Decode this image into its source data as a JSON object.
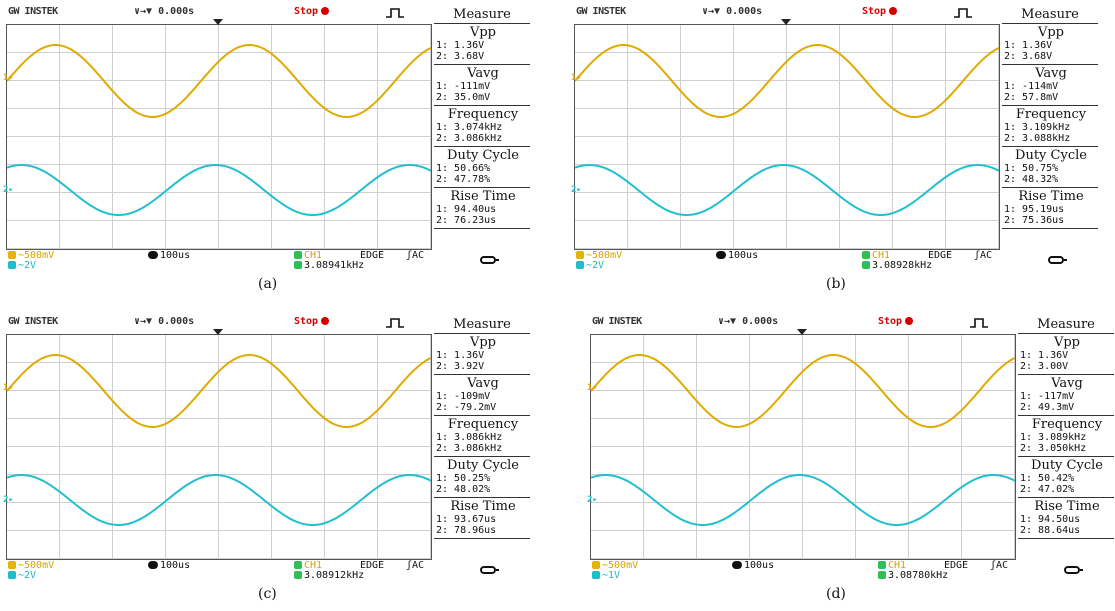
{
  "panels": [
    {
      "brand": "GW INSTEK",
      "time_position": "∨→▼ 0.000s",
      "run_state": "Stop",
      "measure_title": "Measure",
      "measurements": [
        {
          "label": "Vpp",
          "ch1": "1: 1.36V",
          "ch2": "2: 3.68V"
        },
        {
          "label": "Vavg",
          "ch1": "1: -111mV",
          "ch2": "2: 35.0mV"
        },
        {
          "label": "Frequency",
          "ch1": "1: 3.074kHz",
          "ch2": "2: 3.086kHz"
        },
        {
          "label": "Duty Cycle",
          "ch1": "1: 50.66%",
          "ch2": "2: 47.78%"
        },
        {
          "label": "Rise Time",
          "ch1": "1: 94.40us",
          "ch2": "2: 76.23us"
        }
      ],
      "ch1_scale": "∼500mV",
      "ch2_scale": "∼2V",
      "timebase": "100us",
      "trigger_source": "CH1",
      "trigger_type": "EDGE",
      "trigger_coupling": "ʃAC",
      "trigger_freq": "3.08941kHz",
      "caption": "(a)"
    },
    {
      "brand": "GW INSTEK",
      "time_position": "∨→▼ 0.000s",
      "run_state": "Stop",
      "measure_title": "Measure",
      "measurements": [
        {
          "label": "Vpp",
          "ch1": "1: 1.36V",
          "ch2": "2: 3.68V"
        },
        {
          "label": "Vavg",
          "ch1": "1: -114mV",
          "ch2": "2: 57.8mV"
        },
        {
          "label": "Frequency",
          "ch1": "1: 3.109kHz",
          "ch2": "2: 3.088kHz"
        },
        {
          "label": "Duty Cycle",
          "ch1": "1: 50.75%",
          "ch2": "2: 48.32%"
        },
        {
          "label": "Rise Time",
          "ch1": "1: 95.19us",
          "ch2": "2: 75.36us"
        }
      ],
      "ch1_scale": "∼500mV",
      "ch2_scale": "∼2V",
      "timebase": "100us",
      "trigger_source": "CH1",
      "trigger_type": "EDGE",
      "trigger_coupling": "ʃAC",
      "trigger_freq": "3.08928kHz",
      "caption": "(b)"
    },
    {
      "brand": "GW INSTEK",
      "time_position": "∨→▼ 0.000s",
      "run_state": "Stop",
      "measure_title": "Measure",
      "measurements": [
        {
          "label": "Vpp",
          "ch1": "1: 1.36V",
          "ch2": "2: 3.92V"
        },
        {
          "label": "Vavg",
          "ch1": "1: -109mV",
          "ch2": "2: -79.2mV"
        },
        {
          "label": "Frequency",
          "ch1": "1: 3.086kHz",
          "ch2": "2: 3.086kHz"
        },
        {
          "label": "Duty Cycle",
          "ch1": "1: 50.25%",
          "ch2": "2: 48.02%"
        },
        {
          "label": "Rise Time",
          "ch1": "1: 93.67us",
          "ch2": "2: 78.96us"
        }
      ],
      "ch1_scale": "∼500mV",
      "ch2_scale": "∼2V",
      "timebase": "100us",
      "trigger_source": "CH1",
      "trigger_type": "EDGE",
      "trigger_coupling": "ʃAC",
      "trigger_freq": "3.08912kHz",
      "caption": "(c)"
    },
    {
      "brand": "GW INSTEK",
      "time_position": "∨→▼ 0.000s",
      "run_state": "Stop",
      "measure_title": "Measure",
      "measurements": [
        {
          "label": "Vpp",
          "ch1": "1: 1.36V",
          "ch2": "2: 3.00V"
        },
        {
          "label": "Vavg",
          "ch1": "1: -117mV",
          "ch2": "2: 49.3mV"
        },
        {
          "label": "Frequency",
          "ch1": "1: 3.089kHz",
          "ch2": "2: 3.050kHz"
        },
        {
          "label": "Duty Cycle",
          "ch1": "1: 50.42%",
          "ch2": "2: 47.02%"
        },
        {
          "label": "Rise Time",
          "ch1": "1: 94.50us",
          "ch2": "2: 88.64us"
        }
      ],
      "ch1_scale": "∼500mV",
      "ch2_scale": "∼1V",
      "timebase": "100us",
      "trigger_source": "CH1",
      "trigger_type": "EDGE",
      "trigger_coupling": "ʃAC",
      "trigger_freq": "3.08780kHz",
      "caption": "(d)"
    }
  ],
  "colors": {
    "ch1": "#e0aa00",
    "ch2": "#22bfcf",
    "stop": "#d40000",
    "grid": "#cfcfcf"
  },
  "channel_markers": {
    "ch1": "1",
    "ch2": "2"
  }
}
